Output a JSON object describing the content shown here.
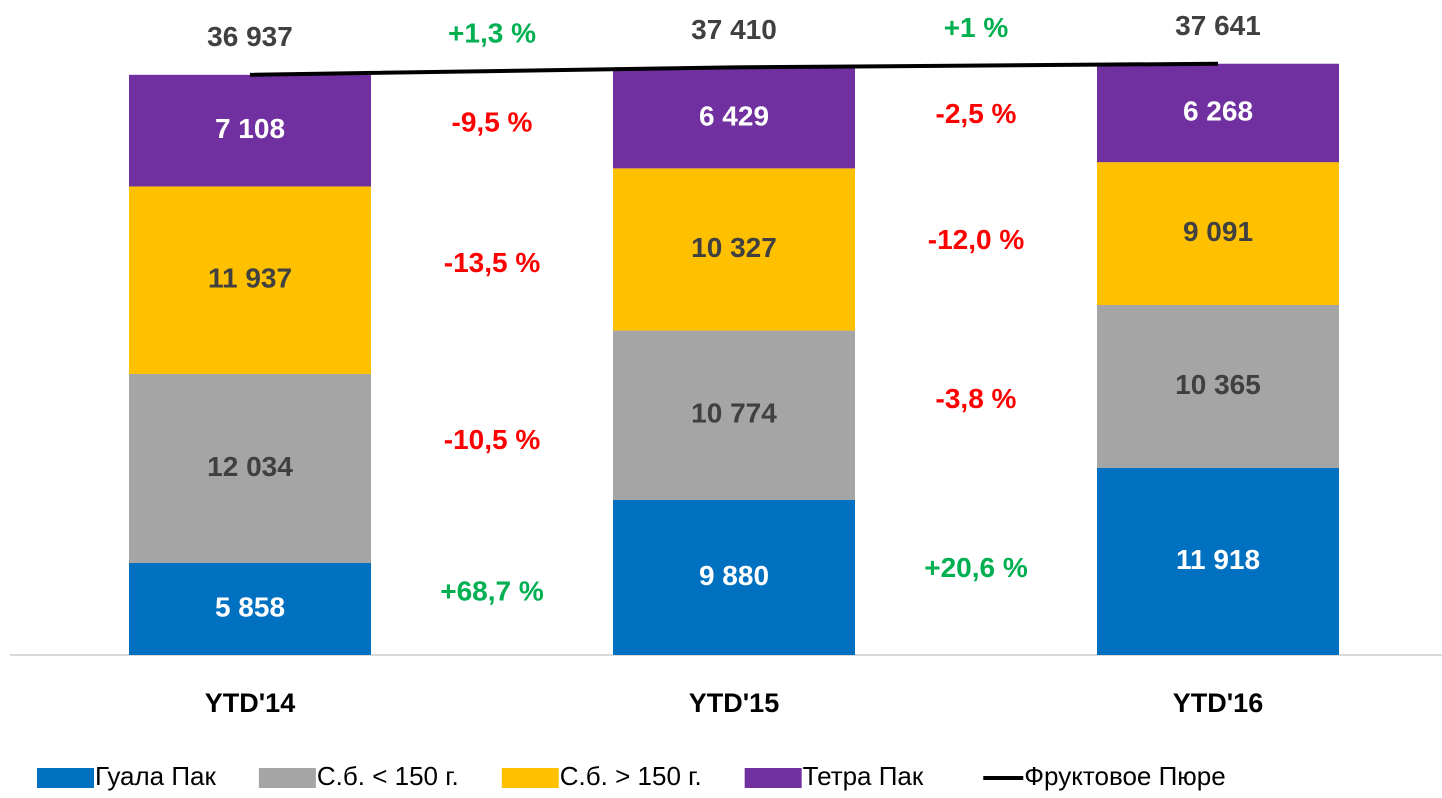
{
  "chart_data": {
    "type": "bar",
    "stacked": true,
    "categories": [
      "YTD'14",
      "YTD'15",
      "YTD'16"
    ],
    "series": [
      {
        "name": "Гуала Пак",
        "color": "#0070c0",
        "label_color": "#ffffff",
        "values": [
          5858,
          9880,
          11918
        ],
        "value_labels": [
          "5 858",
          "9 880",
          "11 918"
        ]
      },
      {
        "name": "С.б. < 150 г.",
        "color": "#a5a5a5",
        "label_color": "#404040",
        "values": [
          12034,
          10774,
          10365
        ],
        "value_labels": [
          "12 034",
          "10 774",
          "10 365"
        ]
      },
      {
        "name": "С.б. > 150 г.",
        "color": "#ffc000",
        "label_color": "#404040",
        "values": [
          11937,
          10327,
          9091
        ],
        "value_labels": [
          "11 937",
          "10 327",
          "9 091"
        ]
      },
      {
        "name": "Тетра Пак",
        "color": "#7030a0",
        "label_color": "#ffffff",
        "values": [
          7108,
          6429,
          6268
        ],
        "value_labels": [
          "7 108",
          "6 429",
          "6 268"
        ]
      },
      {
        "name": "Фруктовое Пюре",
        "type": "line",
        "color": "#000000",
        "label_color": "#404040",
        "values": [
          36937,
          37410,
          37641
        ],
        "value_labels": [
          "36 937",
          "37 410",
          "37 641"
        ]
      }
    ],
    "ylim": [
      0,
      41700
    ],
    "changes": [
      [
        {
          "text": "+68,7 %",
          "color": "#00b050"
        },
        {
          "text": "-10,5 %",
          "color": "#ff0000"
        },
        {
          "text": "-13,5 %",
          "color": "#ff0000"
        },
        {
          "text": "-9,5 %",
          "color": "#ff0000"
        },
        {
          "text": "+1,3 %",
          "color": "#00b050"
        }
      ],
      [
        {
          "text": "+20,6 %",
          "color": "#00b050"
        },
        {
          "text": "-3,8 %",
          "color": "#ff0000"
        },
        {
          "text": "-12,0 %",
          "color": "#ff0000"
        },
        {
          "text": "-2,5 %",
          "color": "#ff0000"
        },
        {
          "text": "+1 %",
          "color": "#00b050"
        }
      ]
    ]
  }
}
